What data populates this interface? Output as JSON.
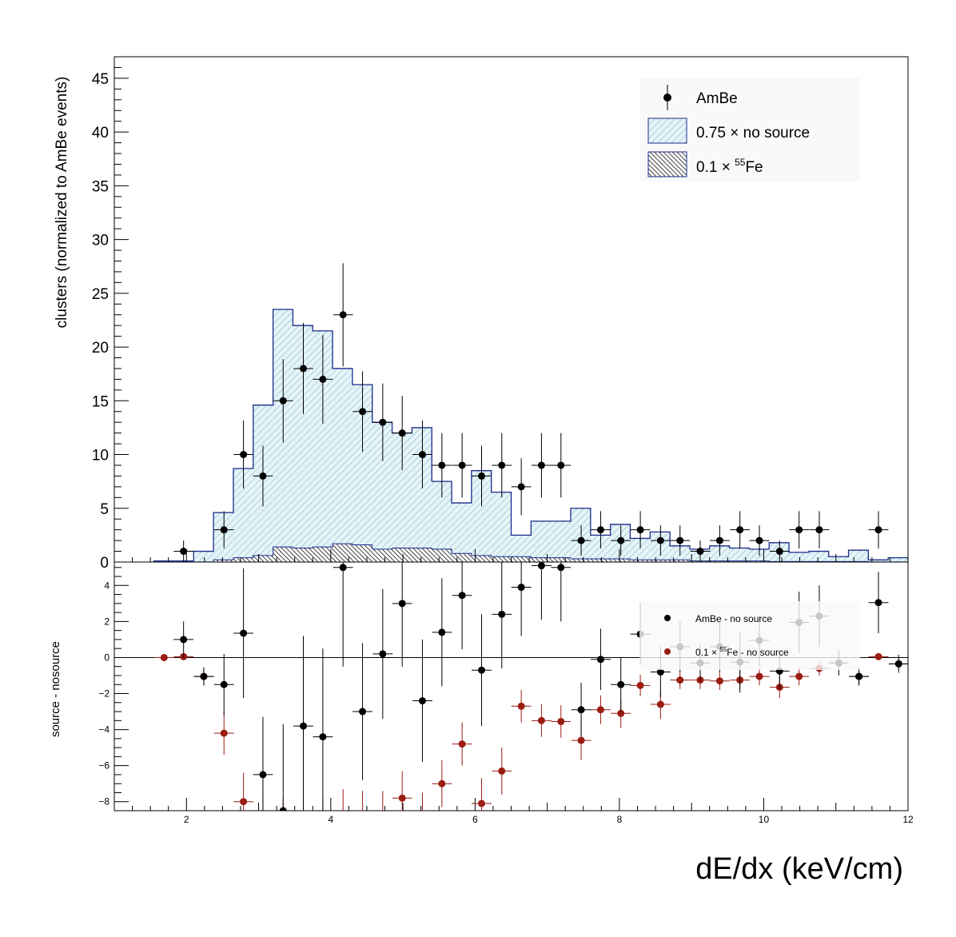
{
  "xaxis": {
    "label": "dE/dx (keV/cm)",
    "range": [
      1,
      12
    ],
    "ticks": [
      2,
      4,
      6,
      8,
      10,
      12
    ]
  },
  "colors": {
    "axes": "#000000",
    "frame_fill": "#ffffff",
    "nosource_fill": "#9fd0de",
    "nosource_line": "#1a2a8a",
    "fe55_fill": "#111111",
    "ambe_marker": "#000000",
    "fe55_marker": "#9b1c12",
    "legend_fill": "#f9f9f9"
  },
  "chart_data": [
    {
      "type": "bar",
      "panel": "top",
      "ylabel": "clusters (normalized to AmBe events)",
      "ylim": [
        0,
        47
      ],
      "yticks": [
        0,
        5,
        10,
        15,
        20,
        25,
        30,
        35,
        40,
        45
      ],
      "bin_edges": [
        1.55,
        1.825,
        2.1,
        2.375,
        2.65,
        2.925,
        3.2,
        3.475,
        3.75,
        4.025,
        4.3,
        4.575,
        4.85,
        5.125,
        5.4,
        5.675,
        5.95,
        6.225,
        6.5,
        6.775,
        7.05,
        7.325,
        7.6,
        7.875,
        8.15,
        8.425,
        8.7,
        8.975,
        9.25,
        9.525,
        9.8,
        10.075,
        10.35,
        10.625,
        10.9,
        11.175,
        11.45,
        11.725,
        12.0
      ],
      "legend": [
        {
          "label": "AmBe",
          "style": "marker"
        },
        {
          "label": "0.75",
          "times": "×",
          "rest": "no source",
          "style": "fill-nosource"
        },
        {
          "label": "0.1",
          "times": "×",
          "sup": "55",
          "rest": "Fe",
          "style": "fill-fe55"
        }
      ],
      "series": [
        {
          "name": "0.75 × no source",
          "style": "hist",
          "values": [
            0.1,
            0.1,
            1.0,
            4.6,
            8.7,
            14.6,
            23.5,
            22.0,
            21.5,
            18.0,
            16.5,
            13.0,
            12.0,
            12.5,
            7.5,
            5.5,
            8.5,
            6.5,
            2.5,
            3.8,
            3.8,
            5.0,
            2.5,
            3.5,
            2.2,
            2.8,
            1.5,
            1.2,
            1.5,
            1.3,
            1.2,
            1.8,
            0.9,
            1.0,
            0.5,
            1.1,
            0.2,
            0.4
          ]
        },
        {
          "name": "0.1 × 55Fe",
          "style": "hist-hatch",
          "values": [
            0,
            0,
            0,
            0.2,
            0.4,
            0.6,
            1.4,
            1.3,
            1.4,
            1.7,
            1.6,
            1.2,
            1.3,
            1.3,
            1.2,
            0.8,
            0.6,
            0.5,
            0.5,
            0.4,
            0.4,
            0.3,
            0.3,
            0.3,
            0.2,
            0.2,
            0.2,
            0.1,
            0.1,
            0.1,
            0.1,
            0.05,
            0.05,
            0.05,
            0.05,
            0.05,
            0,
            0
          ]
        },
        {
          "name": "AmBe",
          "style": "points",
          "points": [
            [
              1.96,
              1
            ],
            [
              2.52,
              3
            ],
            [
              2.79,
              10
            ],
            [
              3.06,
              8
            ],
            [
              3.34,
              15
            ],
            [
              3.62,
              18
            ],
            [
              3.89,
              17
            ],
            [
              4.17,
              23
            ],
            [
              4.44,
              14
            ],
            [
              4.72,
              13
            ],
            [
              4.99,
              12
            ],
            [
              5.27,
              10
            ],
            [
              5.54,
              9
            ],
            [
              5.82,
              9
            ],
            [
              6.09,
              8
            ],
            [
              6.37,
              9
            ],
            [
              6.64,
              7
            ],
            [
              6.92,
              9
            ],
            [
              7.19,
              9
            ],
            [
              7.47,
              2
            ],
            [
              7.74,
              3
            ],
            [
              8.02,
              2
            ],
            [
              8.29,
              3
            ],
            [
              8.57,
              2
            ],
            [
              8.84,
              2
            ],
            [
              9.12,
              1
            ],
            [
              9.39,
              2
            ],
            [
              9.67,
              3
            ],
            [
              9.94,
              2
            ],
            [
              10.22,
              1
            ],
            [
              10.49,
              3
            ],
            [
              10.77,
              3
            ],
            [
              11.59,
              3
            ]
          ]
        }
      ]
    },
    {
      "type": "scatter",
      "panel": "bottom",
      "ylabel": "source - nosource",
      "ylim": [
        -8.5,
        5.3
      ],
      "yticks": [
        -8,
        -6,
        -4,
        -2,
        0,
        2,
        4
      ],
      "legend": [
        {
          "label": "AmBe - no source",
          "style": "marker-black"
        },
        {
          "label": "0.1",
          "times": "×",
          "sup": "55",
          "rest": "Fe - no source",
          "style": "marker-red"
        }
      ],
      "series": [
        {
          "name": "AmBe - no source",
          "points": [
            [
              1.96,
              1.0,
              1.0
            ],
            [
              2.24,
              -1.05,
              0.5
            ],
            [
              2.52,
              -1.5,
              1.7
            ],
            [
              2.79,
              1.35,
              3.6
            ],
            [
              3.06,
              -6.5,
              3.2
            ],
            [
              3.34,
              -8.5,
              4.8
            ],
            [
              3.62,
              -3.8,
              5.0
            ],
            [
              3.89,
              -4.4,
              4.9
            ],
            [
              4.17,
              5.0,
              5.5
            ],
            [
              4.44,
              -3.0,
              3.8
            ],
            [
              4.72,
              0.2,
              3.6
            ],
            [
              4.99,
              3.0,
              3.5
            ],
            [
              5.27,
              -2.4,
              3.4
            ],
            [
              5.54,
              1.4,
              3.0
            ],
            [
              5.82,
              3.45,
              3.0
            ],
            [
              6.09,
              -0.7,
              3.1
            ],
            [
              6.37,
              2.4,
              3.0
            ],
            [
              6.64,
              3.9,
              2.7
            ],
            [
              6.92,
              5.1,
              3.0
            ],
            [
              7.19,
              5.0,
              3.0
            ],
            [
              7.47,
              -2.9,
              1.5
            ],
            [
              7.74,
              -0.1,
              1.7
            ],
            [
              8.02,
              -1.5,
              1.5
            ],
            [
              8.29,
              1.3,
              1.7
            ],
            [
              8.57,
              -0.8,
              1.4
            ],
            [
              8.84,
              0.6,
              1.4
            ],
            [
              9.12,
              -0.3,
              1.0
            ],
            [
              9.39,
              0.6,
              1.4
            ],
            [
              9.67,
              -0.25,
              1.7
            ],
            [
              9.94,
              0.95,
              1.4
            ],
            [
              10.22,
              -0.75,
              1.0
            ],
            [
              10.49,
              1.95,
              1.7
            ],
            [
              10.77,
              2.3,
              1.7
            ],
            [
              11.04,
              -0.3,
              0.7
            ],
            [
              11.32,
              -1.05,
              0.5
            ],
            [
              11.59,
              3.05,
              1.7
            ],
            [
              11.87,
              -0.35,
              0.5
            ]
          ]
        },
        {
          "name": "0.1 × 55Fe - no source",
          "points": [
            [
              1.69,
              0.0,
              0.1
            ],
            [
              1.96,
              0.05,
              0.1
            ],
            [
              2.24,
              -1.05,
              0.5
            ],
            [
              2.52,
              -4.2,
              1.2
            ],
            [
              2.79,
              -8.0,
              1.6
            ],
            [
              3.06,
              -9.0,
              1.7
            ],
            [
              3.34,
              -9.5,
              1.7
            ],
            [
              3.62,
              -9.5,
              1.7
            ],
            [
              3.89,
              -9.5,
              1.7
            ],
            [
              4.17,
              -9.0,
              1.7
            ],
            [
              4.44,
              -9.0,
              1.6
            ],
            [
              4.72,
              -9.0,
              1.6
            ],
            [
              4.99,
              -7.8,
              1.5
            ],
            [
              5.27,
              -9.0,
              1.5
            ],
            [
              5.54,
              -7.0,
              1.3
            ],
            [
              5.82,
              -4.8,
              1.2
            ],
            [
              6.09,
              -8.1,
              1.4
            ],
            [
              6.37,
              -6.3,
              1.3
            ],
            [
              6.64,
              -2.7,
              0.9
            ],
            [
              6.92,
              -3.5,
              0.9
            ],
            [
              7.19,
              -3.55,
              0.9
            ],
            [
              7.47,
              -4.6,
              1.1
            ],
            [
              7.74,
              -2.9,
              0.8
            ],
            [
              8.02,
              -3.1,
              0.8
            ],
            [
              8.29,
              -1.55,
              0.6
            ],
            [
              8.57,
              -2.6,
              0.8
            ],
            [
              8.84,
              -1.25,
              0.5
            ],
            [
              9.12,
              -1.25,
              0.5
            ],
            [
              9.39,
              -1.3,
              0.5
            ],
            [
              9.67,
              -1.25,
              0.5
            ],
            [
              9.94,
              -1.05,
              0.5
            ],
            [
              10.22,
              -1.65,
              0.6
            ],
            [
              10.49,
              -1.05,
              0.5
            ],
            [
              10.77,
              -0.6,
              0.4
            ],
            [
              11.04,
              -0.3,
              0.4
            ],
            [
              11.32,
              -1.05,
              0.5
            ],
            [
              11.59,
              0.05,
              0.1
            ],
            [
              11.87,
              -0.35,
              0.3
            ]
          ]
        }
      ]
    }
  ]
}
